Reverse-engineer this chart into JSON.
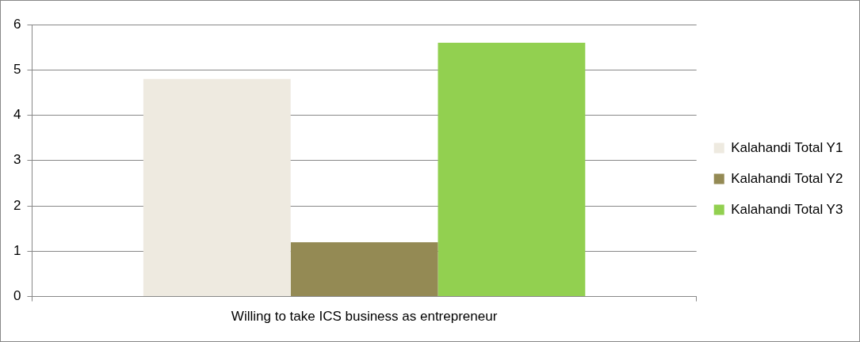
{
  "chart_data": {
    "type": "bar",
    "categories": [
      "Willing to take ICS business as entrepreneur"
    ],
    "series": [
      {
        "name": "Kalahandi Total Y1",
        "color": "#eeeae0",
        "values": [
          4.8
        ]
      },
      {
        "name": "Kalahandi Total Y2",
        "color": "#948a54",
        "values": [
          1.2
        ]
      },
      {
        "name": "Kalahandi Total Y3",
        "color": "#92d050",
        "values": [
          5.6
        ]
      }
    ],
    "ylim": [
      0,
      6
    ],
    "yticks": [
      0,
      1,
      2,
      3,
      4,
      5,
      6
    ],
    "grid": "y",
    "legend": "right"
  }
}
